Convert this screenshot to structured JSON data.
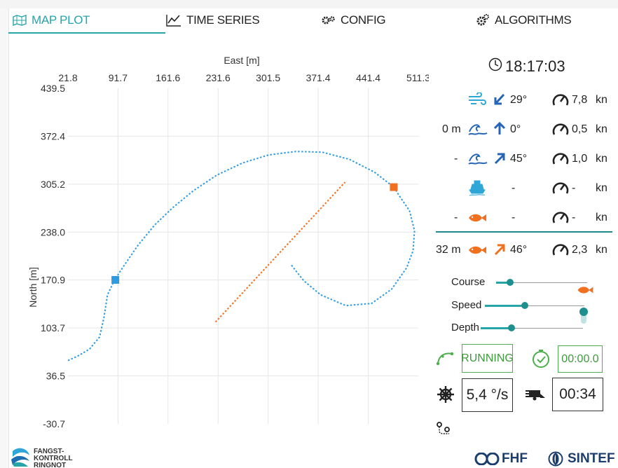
{
  "tabs": [
    {
      "label": "MAP PLOT",
      "icon": "map-icon",
      "active": true
    },
    {
      "label": "TIME SERIES",
      "icon": "line-chart-icon"
    },
    {
      "label": "CONFIG",
      "icon": "gears-icon"
    },
    {
      "label": "ALGORITHMS",
      "icon": "cog-settings-icon"
    }
  ],
  "colors": {
    "accent": "#26a4a8",
    "vessel_path": "#2e9be0",
    "target": "#f07020",
    "green": "#4cae4c"
  },
  "clock": {
    "time": "18:17:03"
  },
  "env": {
    "wind": {
      "dir": "29°",
      "speed": "7,8",
      "unit": "kn"
    },
    "current_surface": {
      "depth": "0 m",
      "dir": "0°",
      "speed": "0,5",
      "unit": "kn"
    },
    "current_deep": {
      "depth": "-",
      "dir": "45°",
      "speed": "1,0",
      "unit": "kn"
    },
    "vessel": {
      "dir": "-",
      "speed": "-",
      "unit": "kn"
    },
    "fish": {
      "depth": "-",
      "dir": "-",
      "speed": "-",
      "unit": "kn"
    },
    "fish_target": {
      "depth": "32 m",
      "dir": "46°",
      "speed": "2,3",
      "unit": "kn"
    }
  },
  "sliders": {
    "course": {
      "label": "Course",
      "level": 0.15
    },
    "speed": {
      "label": "Speed",
      "level": 0.4
    },
    "depth": {
      "label": "Depth",
      "level": 0.3
    }
  },
  "status": {
    "state": "RUNNING",
    "timer": "00:00.0",
    "turn_rate": "5,4 °/s",
    "countdown": "00:34"
  },
  "brand": {
    "left": [
      "FANGST-",
      "KONTROLL",
      "RINGNOT"
    ],
    "fhf": "FHF",
    "sintef": "SINTEF"
  },
  "chart_data": {
    "type": "line",
    "xlabel": "East [m]",
    "ylabel": "North [m]",
    "x_ticks": [
      21.8,
      91.7,
      161.6,
      231.6,
      301.5,
      371.4,
      441.4,
      511.3
    ],
    "y_ticks": [
      439.5,
      372.4,
      305.2,
      238.0,
      170.9,
      103.7,
      36.5,
      -30.7
    ],
    "xlim": [
      21.8,
      511.3
    ],
    "ylim": [
      -30.7,
      439.5
    ],
    "grid": true,
    "series": [
      {
        "style": "dotted",
        "color": "#2e9be0",
        "points": [
          [
            21.8,
            58
          ],
          [
            35,
            64
          ],
          [
            52,
            74
          ],
          [
            66,
            91
          ],
          [
            72,
            118
          ],
          [
            77,
            150
          ],
          [
            87,
            171
          ],
          [
            100,
            191
          ],
          [
            120,
            220
          ],
          [
            143,
            248
          ],
          [
            168,
            272
          ],
          [
            197,
            296
          ],
          [
            230,
            318
          ],
          [
            266,
            335
          ],
          [
            302,
            346
          ],
          [
            340,
            351
          ],
          [
            377,
            350
          ],
          [
            415,
            340
          ],
          [
            450,
            322
          ],
          [
            477,
            301
          ],
          [
            484,
            290
          ],
          [
            499,
            268
          ],
          [
            506,
            240
          ],
          [
            504,
            212
          ],
          [
            495,
            188
          ],
          [
            474,
            158
          ],
          [
            446,
            138
          ],
          [
            410,
            135
          ],
          [
            375,
            150
          ],
          [
            351,
            170
          ],
          [
            333,
            193
          ]
        ]
      },
      {
        "style": "dotted",
        "color": "#f07020",
        "points": [
          [
            228,
            112
          ],
          [
            409,
            308
          ]
        ]
      }
    ],
    "markers": [
      {
        "x": 88,
        "y": 171,
        "color": "#2e9be0"
      },
      {
        "x": 477,
        "y": 301,
        "color": "#f07020"
      }
    ]
  }
}
